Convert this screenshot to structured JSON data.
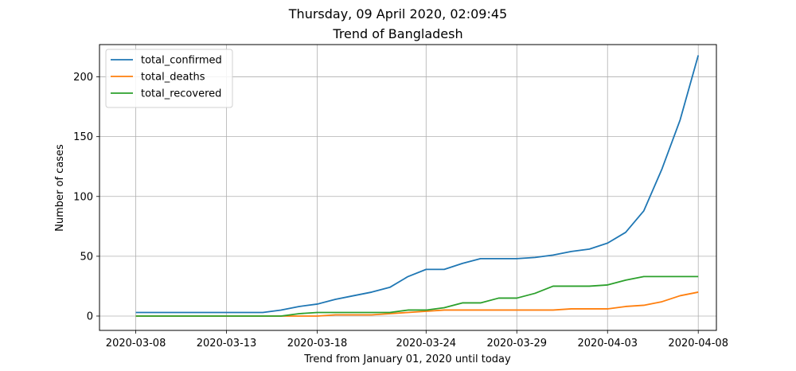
{
  "chart_data": {
    "type": "line",
    "suptitle": "Thursday, 09 April 2020, 02:09:45",
    "title": "Trend of Bangladesh",
    "xlabel": "Trend from January 01, 2020 until today",
    "ylabel": "Number of cases",
    "ylim": [
      -12,
      227
    ],
    "yticks": [
      0,
      50,
      100,
      150,
      200
    ],
    "xlim": [
      "2020-03-06",
      "2020-04-09"
    ],
    "xticks": [
      "2020-03-08",
      "2020-03-13",
      "2020-03-18",
      "2020-03-24",
      "2020-03-29",
      "2020-04-03",
      "2020-04-08"
    ],
    "grid": true,
    "legend_position": "upper-left",
    "x": [
      "2020-03-08",
      "2020-03-09",
      "2020-03-10",
      "2020-03-11",
      "2020-03-12",
      "2020-03-13",
      "2020-03-14",
      "2020-03-15",
      "2020-03-16",
      "2020-03-17",
      "2020-03-18",
      "2020-03-19",
      "2020-03-20",
      "2020-03-21",
      "2020-03-22",
      "2020-03-23",
      "2020-03-24",
      "2020-03-25",
      "2020-03-26",
      "2020-03-27",
      "2020-03-28",
      "2020-03-29",
      "2020-03-30",
      "2020-03-31",
      "2020-04-01",
      "2020-04-02",
      "2020-04-03",
      "2020-04-04",
      "2020-04-05",
      "2020-04-06",
      "2020-04-07",
      "2020-04-08"
    ],
    "series": [
      {
        "name": "total_confirmed",
        "color": "#1f77b4",
        "values": [
          3,
          3,
          3,
          3,
          3,
          3,
          3,
          3,
          5,
          8,
          10,
          14,
          17,
          20,
          24,
          33,
          39,
          39,
          44,
          48,
          48,
          48,
          49,
          51,
          54,
          56,
          61,
          70,
          88,
          123,
          164,
          218
        ]
      },
      {
        "name": "total_deaths",
        "color": "#ff7f0e",
        "values": [
          0,
          0,
          0,
          0,
          0,
          0,
          0,
          0,
          0,
          0,
          0,
          1,
          1,
          1,
          2,
          3,
          4,
          5,
          5,
          5,
          5,
          5,
          5,
          5,
          6,
          6,
          6,
          8,
          9,
          12,
          17,
          20
        ]
      },
      {
        "name": "total_recovered",
        "color": "#2ca02c",
        "values": [
          0,
          0,
          0,
          0,
          0,
          0,
          0,
          0,
          0,
          2,
          3,
          3,
          3,
          3,
          3,
          5,
          5,
          7,
          11,
          11,
          15,
          15,
          19,
          25,
          25,
          25,
          26,
          30,
          33,
          33,
          33,
          33
        ]
      }
    ]
  }
}
